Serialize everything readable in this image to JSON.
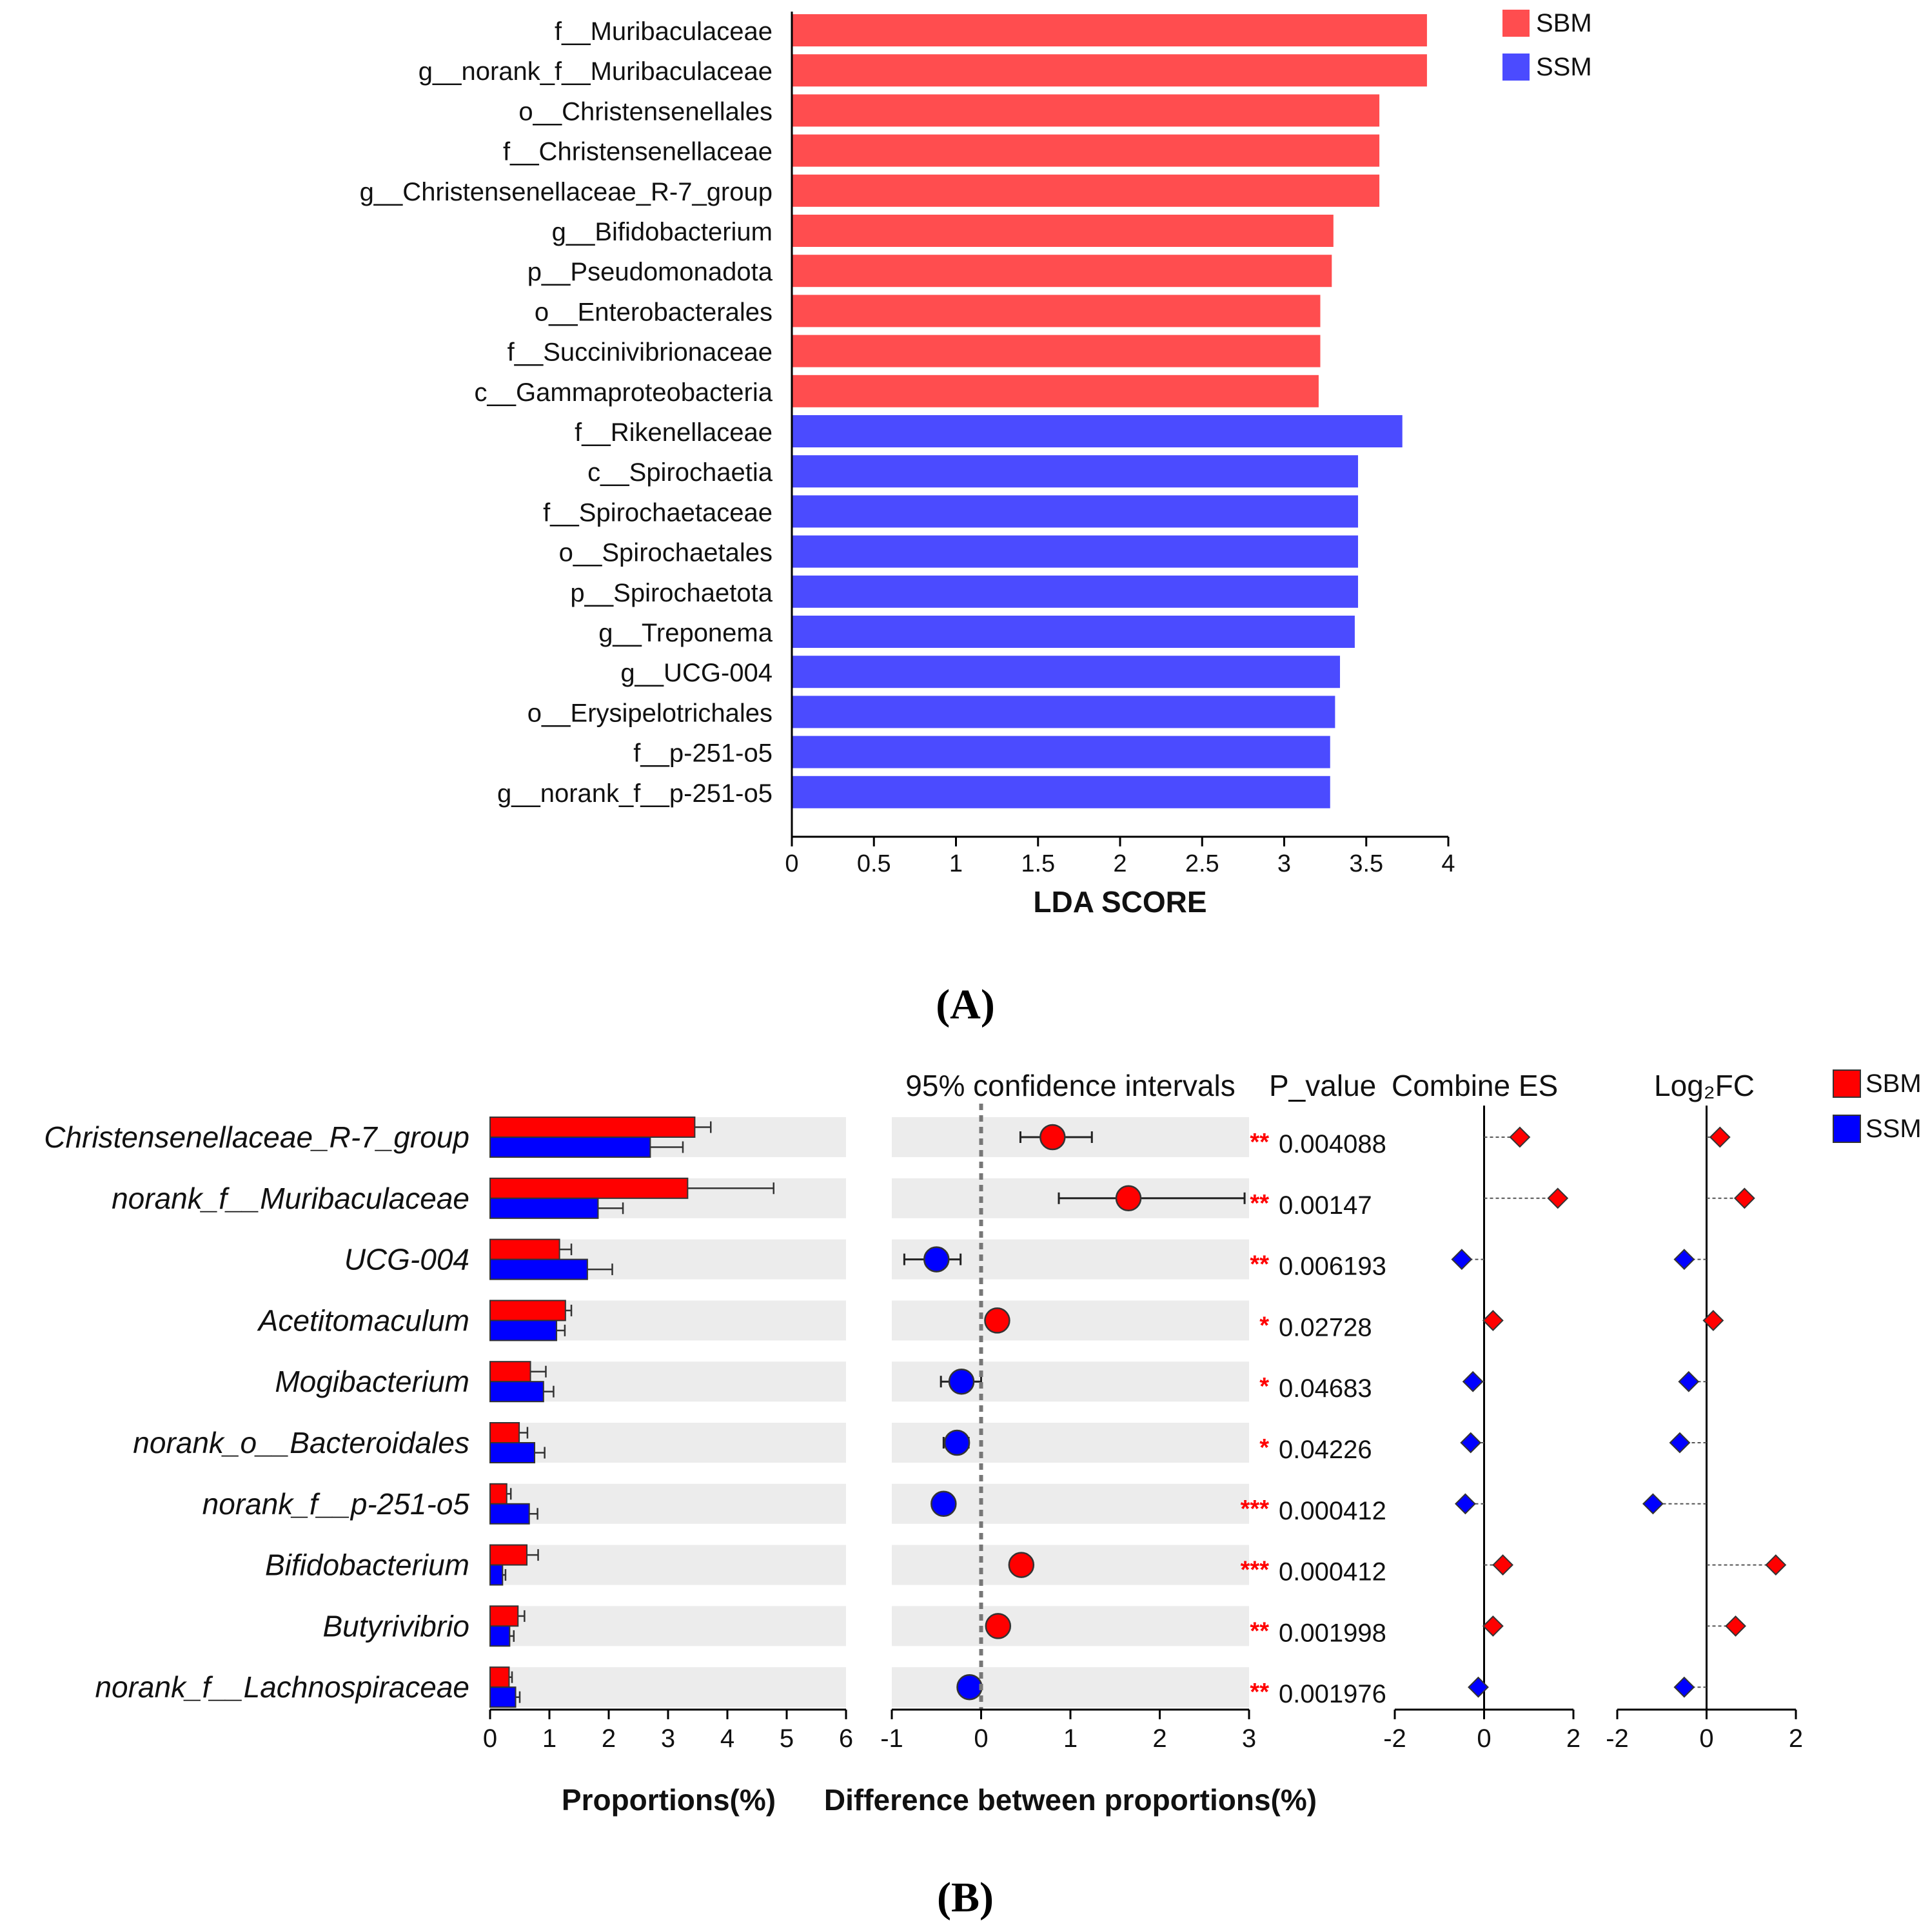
{
  "panels": {
    "a_label": "(A)",
    "b_label": "(B)"
  },
  "chart_data": [
    {
      "type": "bar",
      "orientation": "horizontal",
      "xlabel": "LDA SCORE",
      "xlim": [
        0,
        4
      ],
      "xticks": [
        "0",
        "0.5",
        "1",
        "1.5",
        "2",
        "2.5",
        "3",
        "3.5",
        "4"
      ],
      "legend": {
        "placement": "top-right",
        "entries": [
          {
            "name": "SBM",
            "color": "#ff4d4f"
          },
          {
            "name": "SSM",
            "color": "#4b4bff"
          }
        ]
      },
      "categories": [
        "f__Muribaculaceae",
        "g__norank_f__Muribaculaceae",
        "o__Christensenellales",
        "f__Christensenellaceae",
        "g__Christensenellaceae_R-7_group",
        "g__Bifidobacterium",
        "p__Pseudomonadota",
        "o__Enterobacterales",
        "f__Succinivibrionaceae",
        "c__Gammaproteobacteria",
        "f__Rikenellaceae",
        "c__Spirochaetia",
        "f__Spirochaetaceae",
        "o__Spirochaetales",
        "p__Spirochaetota",
        "g__Treponema",
        "g__UCG-004",
        "o__Erysipelotrichales",
        "f__p-251-o5",
        "g__norank_f__p-251-o5"
      ],
      "values": [
        3.87,
        3.87,
        3.58,
        3.58,
        3.58,
        3.3,
        3.29,
        3.22,
        3.22,
        3.21,
        3.72,
        3.45,
        3.45,
        3.45,
        3.45,
        3.43,
        3.34,
        3.31,
        3.28,
        3.28
      ],
      "groups": [
        "SBM",
        "SBM",
        "SBM",
        "SBM",
        "SBM",
        "SBM",
        "SBM",
        "SBM",
        "SBM",
        "SBM",
        "SSM",
        "SSM",
        "SSM",
        "SSM",
        "SSM",
        "SSM",
        "SSM",
        "SSM",
        "SSM",
        "SSM"
      ]
    },
    {
      "type": "bar",
      "orientation": "horizontal",
      "xlabel": "Proportions(%)",
      "xlim": [
        0,
        6
      ],
      "xticks": [
        "0",
        "1",
        "2",
        "3",
        "4",
        "5",
        "6"
      ],
      "categories": [
        "Christensenellaceae_R-7_group",
        "norank_f__Muribaculaceae",
        "UCG-004",
        "Acetitomaculum",
        "Mogibacterium",
        "norank_o__Bacteroidales",
        "norank_f__p-251-o5",
        "Bifidobacterium",
        "Butyrivibrio",
        "norank_f__Lachnospiraceae"
      ],
      "series": [
        {
          "name": "SBM",
          "color": "#ff0000",
          "values": [
            3.45,
            3.33,
            1.17,
            1.27,
            0.68,
            0.49,
            0.28,
            0.62,
            0.47,
            0.32
          ],
          "errors": [
            0.27,
            1.45,
            0.2,
            0.1,
            0.26,
            0.14,
            0.07,
            0.19,
            0.11,
            0.05
          ]
        },
        {
          "name": "SSM",
          "color": "#0000ff",
          "values": [
            2.7,
            1.82,
            1.64,
            1.12,
            0.9,
            0.75,
            0.66,
            0.21,
            0.33,
            0.43
          ],
          "errors": [
            0.55,
            0.42,
            0.42,
            0.14,
            0.17,
            0.17,
            0.14,
            0.05,
            0.07,
            0.07
          ]
        }
      ]
    },
    {
      "type": "scatter",
      "header": "95% confidence intervals",
      "xlabel": "Difference between proportions(%)",
      "xlim": [
        -1,
        3
      ],
      "xticks": [
        "-1",
        "0",
        "1",
        "2",
        "3"
      ],
      "categories": [
        "Christensenellaceae_R-7_group",
        "norank_f__Muribaculaceae",
        "UCG-004",
        "Acetitomaculum",
        "Mogibacterium",
        "norank_o__Bacteroidales",
        "norank_f__p-251-o5",
        "Bifidobacterium",
        "Butyrivibrio",
        "norank_f__Lachnospiraceae"
      ],
      "values": [
        0.8,
        1.65,
        -0.5,
        0.18,
        -0.22,
        -0.27,
        -0.42,
        0.45,
        0.19,
        -0.13
      ],
      "ci_low": [
        0.44,
        0.87,
        -0.86,
        0.18,
        -0.45,
        -0.42,
        -0.42,
        0.45,
        0.19,
        -0.13
      ],
      "ci_high": [
        1.24,
        2.95,
        -0.23,
        0.18,
        0.0,
        -0.14,
        -0.42,
        0.45,
        0.19,
        -0.13
      ],
      "colors": [
        "#ff0000",
        "#ff0000",
        "#0000ff",
        "#ff0000",
        "#0000ff",
        "#0000ff",
        "#0000ff",
        "#ff0000",
        "#ff0000",
        "#0000ff"
      ],
      "p_header": "P_value",
      "significance": [
        "**",
        "**",
        "**",
        "*",
        "*",
        "*",
        "***",
        "***",
        "**",
        "**"
      ],
      "p_values": [
        "0.004088",
        "0.00147",
        "0.006193",
        "0.02728",
        "0.04683",
        "0.04226",
        "0.000412",
        "0.000412",
        "0.001998",
        "0.001976"
      ]
    },
    {
      "type": "scatter",
      "header": "Combine ES",
      "xlim": [
        -2,
        2
      ],
      "xticks": [
        "-2",
        "0",
        "2"
      ],
      "values": [
        0.8,
        1.65,
        -0.5,
        0.2,
        -0.25,
        -0.3,
        -0.42,
        0.42,
        0.2,
        -0.13
      ],
      "colors": [
        "#ff0000",
        "#ff0000",
        "#0000ff",
        "#ff0000",
        "#0000ff",
        "#0000ff",
        "#0000ff",
        "#ff0000",
        "#ff0000",
        "#0000ff"
      ]
    },
    {
      "type": "scatter",
      "header": "Log₂FC",
      "xlim": [
        -2,
        2
      ],
      "xticks": [
        "-2",
        "0",
        "2"
      ],
      "values": [
        0.3,
        0.85,
        -0.5,
        0.15,
        -0.4,
        -0.6,
        -1.2,
        1.55,
        0.65,
        -0.5
      ],
      "colors": [
        "#ff0000",
        "#ff0000",
        "#0000ff",
        "#ff0000",
        "#0000ff",
        "#0000ff",
        "#0000ff",
        "#ff0000",
        "#ff0000",
        "#0000ff"
      ],
      "legend": {
        "placement": "top-right",
        "entries": [
          {
            "name": "SBM",
            "color": "#ff0000"
          },
          {
            "name": "SSM",
            "color": "#0000ff"
          }
        ]
      }
    }
  ]
}
